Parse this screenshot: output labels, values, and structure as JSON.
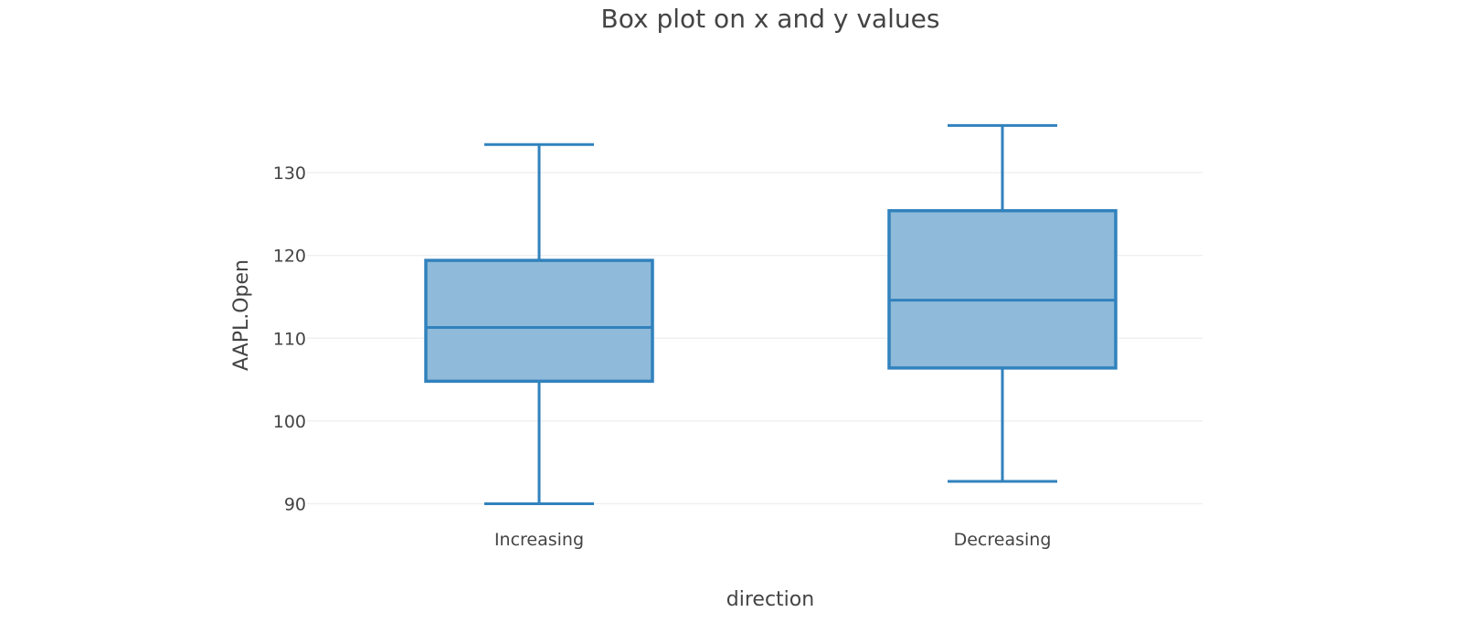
{
  "chart_data": {
    "type": "box",
    "title": "Box plot on x and y values",
    "xlabel": "direction",
    "ylabel": "AAPL.Open",
    "categories": [
      "Increasing",
      "Decreasing"
    ],
    "y_ticks": [
      90,
      100,
      110,
      120,
      130
    ],
    "ylim": [
      89,
      137
    ],
    "grid": true,
    "series": [
      {
        "category": "Increasing",
        "min": 90.0,
        "q1": 104.8,
        "median": 111.3,
        "q3": 119.4,
        "max": 133.4
      },
      {
        "category": "Decreasing",
        "min": 92.7,
        "q1": 106.4,
        "median": 114.6,
        "q3": 125.4,
        "max": 135.7
      }
    ],
    "colors": {
      "box_line": "#3182bd",
      "box_fill": "#8fbad9",
      "grid": "#eeeeee",
      "text": "#444444"
    }
  }
}
